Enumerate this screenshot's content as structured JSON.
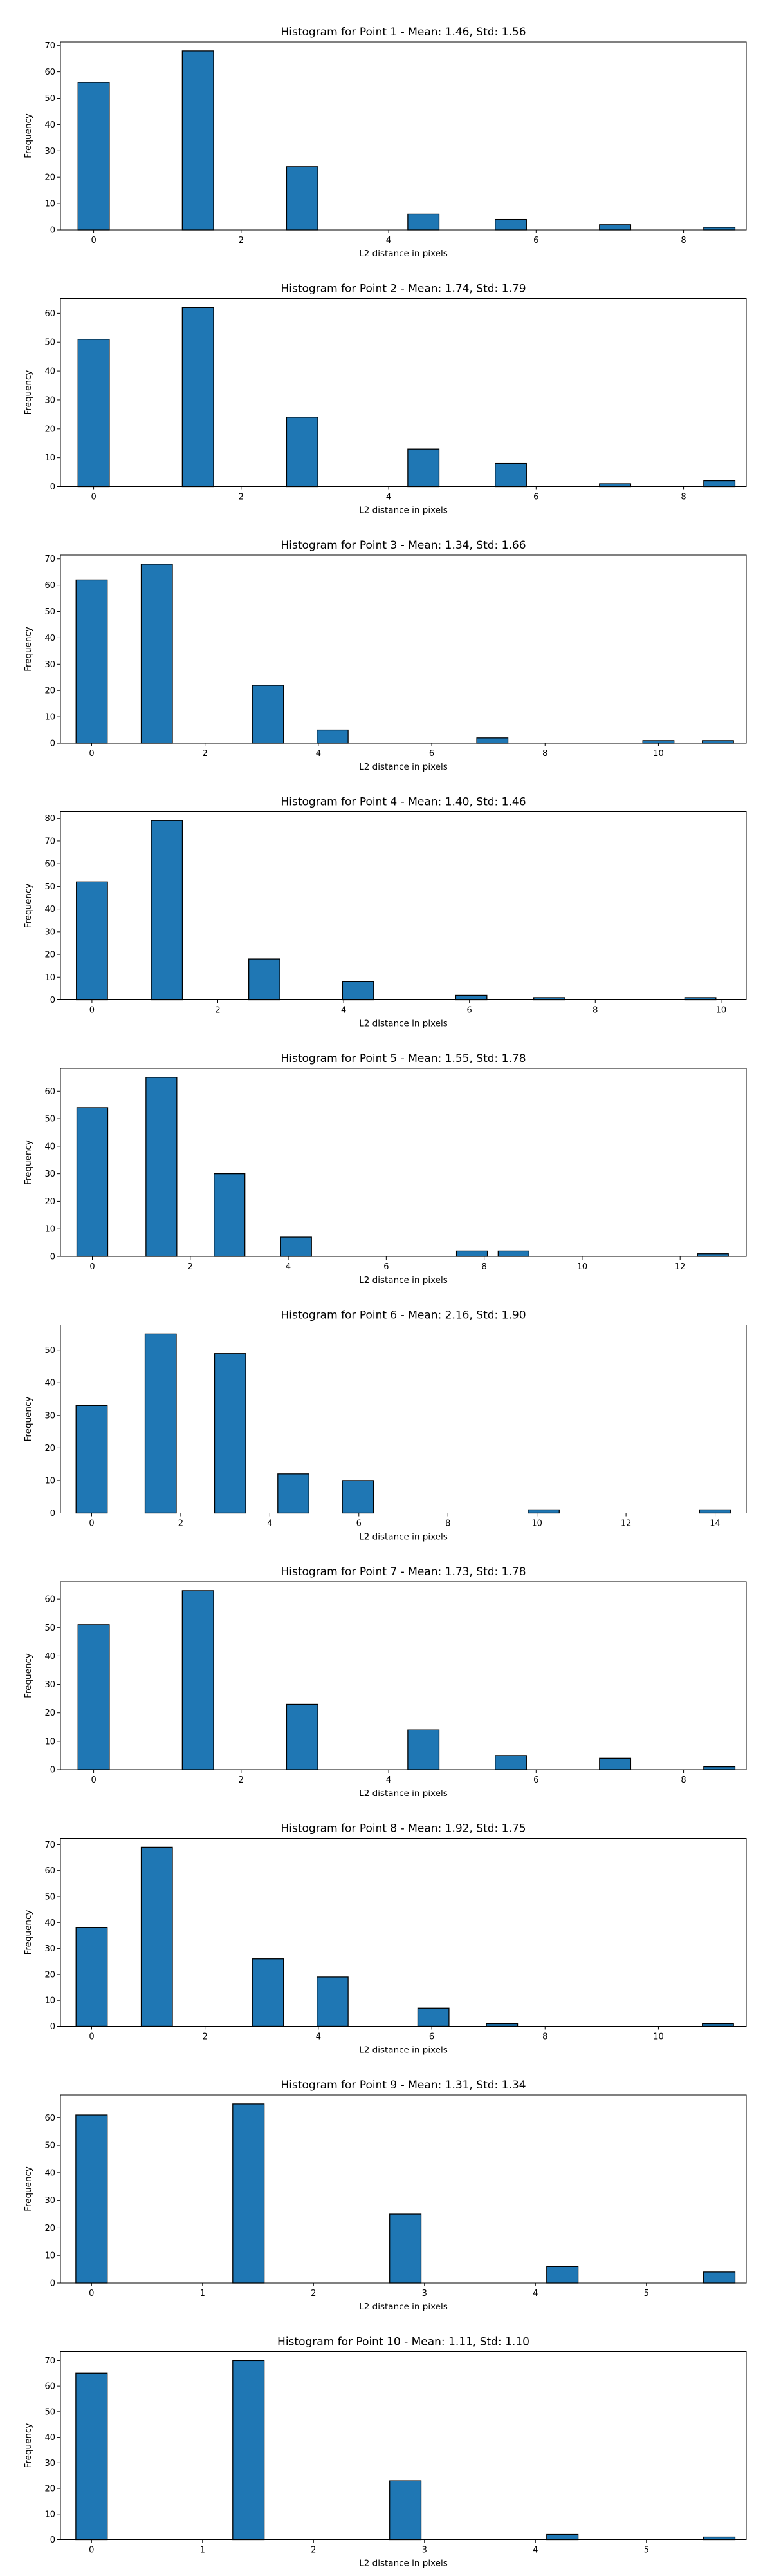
{
  "chart_data": [
    {
      "type": "bar",
      "title": "Histogram for Point 1 - Mean: 1.46, Std: 1.56",
      "xlabel": "L2 distance in pixels",
      "ylabel": "Frequency",
      "xlim": [
        -0.45,
        8.85
      ],
      "ylim": [
        0,
        71.4
      ],
      "xticks": [
        0,
        2,
        4,
        6,
        8
      ],
      "yticks": [
        0,
        10,
        20,
        30,
        40,
        50,
        60,
        70
      ],
      "bin_width": 0.424,
      "x": [
        0.0,
        1.414,
        2.828,
        4.472,
        5.657,
        7.071,
        8.485
      ],
      "values": [
        56,
        68,
        24,
        6,
        4,
        2,
        1
      ]
    },
    {
      "type": "bar",
      "title": "Histogram for Point 2 - Mean: 1.74, Std: 1.79",
      "xlabel": "L2 distance in pixels",
      "ylabel": "Frequency",
      "xlim": [
        -0.45,
        8.85
      ],
      "ylim": [
        0,
        65.1
      ],
      "xticks": [
        0,
        2,
        4,
        6,
        8
      ],
      "yticks": [
        0,
        10,
        20,
        30,
        40,
        50,
        60
      ],
      "bin_width": 0.424,
      "x": [
        0.0,
        1.414,
        2.828,
        4.472,
        5.657,
        7.071,
        8.485
      ],
      "values": [
        51,
        62,
        24,
        13,
        8,
        1,
        2
      ]
    },
    {
      "type": "bar",
      "title": "Histogram for Point 3 - Mean: 1.34, Std: 1.66",
      "xlabel": "L2 distance in pixels",
      "ylabel": "Frequency",
      "xlim": [
        -0.55,
        11.55
      ],
      "ylim": [
        0,
        71.4
      ],
      "xticks": [
        0,
        2,
        4,
        6,
        8,
        10
      ],
      "yticks": [
        0,
        10,
        20,
        30,
        40,
        50,
        60,
        70
      ],
      "bin_width": 0.55,
      "x": [
        0.0,
        1.15,
        3.11,
        4.25,
        7.07,
        10.0,
        11.05
      ],
      "values": [
        62,
        68,
        22,
        5,
        2,
        1,
        1
      ]
    },
    {
      "type": "bar",
      "title": "Histogram for Point 4 - Mean: 1.40, Std: 1.46",
      "xlabel": "L2 distance in pixels",
      "ylabel": "Frequency",
      "xlim": [
        -0.5,
        10.4
      ],
      "ylim": [
        0,
        82.9
      ],
      "xticks": [
        0,
        2,
        4,
        6,
        8,
        10
      ],
      "yticks": [
        0,
        10,
        20,
        30,
        40,
        50,
        60,
        70,
        80
      ],
      "bin_width": 0.495,
      "x": [
        0.0,
        1.19,
        2.74,
        4.23,
        6.03,
        7.27,
        9.67
      ],
      "values": [
        52,
        79,
        18,
        8,
        2,
        1,
        1
      ]
    },
    {
      "type": "bar",
      "title": "Histogram for Point 5 - Mean: 1.55, Std: 1.78",
      "xlabel": "L2 distance in pixels",
      "ylabel": "Frequency",
      "xlim": [
        -0.65,
        13.35
      ],
      "ylim": [
        0,
        68.25
      ],
      "xticks": [
        0,
        2,
        4,
        6,
        8,
        10,
        12
      ],
      "yticks": [
        0,
        10,
        20,
        30,
        40,
        50,
        60
      ],
      "bin_width": 0.63,
      "x": [
        0.0,
        1.41,
        2.8,
        4.16,
        7.75,
        8.6,
        12.67
      ],
      "values": [
        54,
        65,
        30,
        7,
        2,
        2,
        1
      ]
    },
    {
      "type": "bar",
      "title": "Histogram for Point 6 - Mean: 2.16, Std: 1.90",
      "xlabel": "L2 distance in pixels",
      "ylabel": "Frequency",
      "xlim": [
        -0.7,
        14.7
      ],
      "ylim": [
        0,
        57.75
      ],
      "xticks": [
        0,
        2,
        4,
        6,
        8,
        10,
        12,
        14
      ],
      "yticks": [
        0,
        10,
        20,
        30,
        40,
        50
      ],
      "bin_width": 0.7,
      "x": [
        0.0,
        1.55,
        3.11,
        4.53,
        5.98,
        10.15,
        14.0
      ],
      "values": [
        33,
        55,
        49,
        12,
        10,
        1,
        1
      ]
    },
    {
      "type": "bar",
      "title": "Histogram for Point 7 - Mean: 1.73, Std: 1.78",
      "xlabel": "L2 distance in pixels",
      "ylabel": "Frequency",
      "xlim": [
        -0.45,
        8.85
      ],
      "ylim": [
        0,
        66.15
      ],
      "xticks": [
        0,
        2,
        4,
        6,
        8
      ],
      "yticks": [
        0,
        10,
        20,
        30,
        40,
        50,
        60
      ],
      "bin_width": 0.424,
      "x": [
        0.0,
        1.414,
        2.828,
        4.472,
        5.657,
        7.071,
        8.485
      ],
      "values": [
        51,
        63,
        23,
        14,
        5,
        4,
        1
      ]
    },
    {
      "type": "bar",
      "title": "Histogram for Point 8 - Mean: 1.92, Std: 1.75",
      "xlabel": "L2 distance in pixels",
      "ylabel": "Frequency",
      "xlim": [
        -0.55,
        11.55
      ],
      "ylim": [
        0,
        72.45
      ],
      "xticks": [
        0,
        2,
        4,
        6,
        8,
        10
      ],
      "yticks": [
        0,
        10,
        20,
        30,
        40,
        50,
        60,
        70
      ],
      "bin_width": 0.55,
      "x": [
        0.0,
        1.15,
        3.11,
        4.25,
        6.03,
        7.24,
        11.05
      ],
      "values": [
        38,
        69,
        26,
        19,
        7,
        1,
        1
      ]
    },
    {
      "type": "bar",
      "title": "Histogram for Point 9 - Mean: 1.31, Std: 1.34",
      "xlabel": "L2 distance in pixels",
      "ylabel": "Frequency",
      "xlim": [
        -0.28,
        5.9
      ],
      "ylim": [
        0,
        68.25
      ],
      "xticks": [
        0,
        1,
        2,
        3,
        4,
        5
      ],
      "yticks": [
        0,
        10,
        20,
        30,
        40,
        50,
        60
      ],
      "bin_width": 0.283,
      "x": [
        0.0,
        1.414,
        2.828,
        4.243,
        5.657
      ],
      "values": [
        61,
        65,
        25,
        6,
        4
      ]
    },
    {
      "type": "bar",
      "title": "Histogram for Point 10 - Mean: 1.11, Std: 1.10",
      "xlabel": "L2 distance in pixels",
      "ylabel": "Frequency",
      "xlim": [
        -0.28,
        5.9
      ],
      "ylim": [
        0,
        73.5
      ],
      "xticks": [
        0,
        1,
        2,
        3,
        4,
        5
      ],
      "yticks": [
        0,
        10,
        20,
        30,
        40,
        50,
        60,
        70
      ],
      "bin_width": 0.283,
      "x": [
        0.0,
        1.414,
        2.828,
        4.243,
        5.657
      ],
      "values": [
        65,
        70,
        23,
        2,
        1
      ]
    }
  ],
  "colors": {
    "bar_fill": "#1f77b4",
    "bar_edge": "#000000"
  }
}
